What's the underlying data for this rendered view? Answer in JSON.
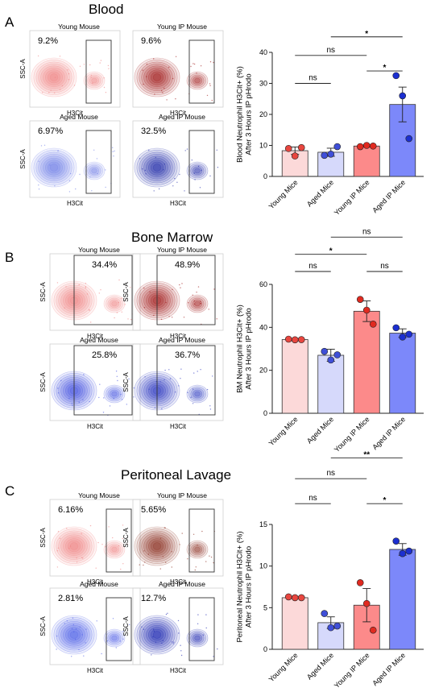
{
  "panels": [
    {
      "letter": "A",
      "title": "Blood",
      "flow": [
        {
          "title": "Young Mouse",
          "pct": "9.2%",
          "x_label": "H3Cit",
          "y_label": "SSC-A",
          "color": "#f08080",
          "style": "right-gate"
        },
        {
          "title": "Young IP Mouse",
          "pct": "9.6%",
          "x_label": "H3Cit",
          "y_label": "",
          "color": "#a01818",
          "style": "right-gate"
        },
        {
          "title": "Aged Mouse",
          "pct": "6.97%",
          "x_label": "H3Cit",
          "y_label": "SSC-A",
          "color": "#6f7fe8",
          "style": "right-gate"
        },
        {
          "title": "Aged IP Mouse",
          "pct": "32.5%",
          "x_label": "H3Cit",
          "y_label": "",
          "color": "#1f2aa8",
          "style": "right-gate"
        }
      ]
    },
    {
      "letter": "B",
      "title": "Bone Marrow",
      "flow": [
        {
          "title": "Young Mouse",
          "pct": "34.4%",
          "x_label": "H3Cit",
          "y_label": "SSC-A",
          "color": "#f08080",
          "style": "wide-gate"
        },
        {
          "title": "Young IP Mouse",
          "pct": "48.9%",
          "x_label": "H3Cit",
          "y_label": "SSC-A",
          "color": "#a01818",
          "style": "wide-gate"
        },
        {
          "title": "Aged Mouse",
          "pct": "25.8%",
          "x_label": "H3Cit",
          "y_label": "SSC-A",
          "color": "#3f4fe0",
          "style": "wide-gate"
        },
        {
          "title": "Aged IP Mouse",
          "pct": "36.7%",
          "x_label": "H3Cit",
          "y_label": "SSC-A",
          "color": "#2a36c0",
          "style": "wide-gate"
        }
      ]
    },
    {
      "letter": "C",
      "title": "Peritoneal Lavage",
      "flow": [
        {
          "title": "Young Mouse",
          "pct": "6.16%",
          "x_label": "H3Cit",
          "y_label": "SSC-A",
          "color": "#f08080",
          "style": "right-gate"
        },
        {
          "title": "Young IP Mouse",
          "pct": "5.65%",
          "x_label": "H3Cit",
          "y_label": "SSC-A",
          "color": "#8a2a1a",
          "style": "right-gate"
        },
        {
          "title": "Aged Mouse",
          "pct": "2.81%",
          "x_label": "H3Cit",
          "y_label": "SSC-A",
          "color": "#4f5fe8",
          "style": "right-gate"
        },
        {
          "title": "Aged IP Mouse",
          "pct": "12.7%",
          "x_label": "H3Cit",
          "y_label": "SSC-A",
          "color": "#1a24b0",
          "style": "right-gate"
        }
      ]
    }
  ],
  "chart_data": [
    {
      "type": "bar",
      "panel": "A",
      "title": "",
      "categories": [
        "Young Mice",
        "Aged Mice",
        "Young IP Mice",
        "Aged IP Mice"
      ],
      "values": [
        8.3,
        7.8,
        9.8,
        23.2
      ],
      "errors": [
        1.2,
        1.3,
        0.3,
        5.6
      ],
      "points": [
        [
          9.0,
          6.6,
          9.3
        ],
        [
          6.8,
          7.2,
          9.6
        ],
        [
          9.6,
          10.0,
          9.8
        ],
        [
          32.5,
          26.0,
          12.2
        ]
      ],
      "ylabel": [
        "Blood Neutrophil H3Cit+ (%)",
        "After 3 Hours IP pHrodo"
      ],
      "ylim": [
        0,
        40
      ],
      "yticks": [
        0,
        10,
        20,
        30,
        40
      ],
      "bar_colors": [
        "#fcd9d9",
        "#d6d9fb",
        "#fc8a8a",
        "#7c88fa"
      ],
      "point_colors": [
        "#e8463f",
        "#3f4fd8",
        "#e02a20",
        "#1c2fd0"
      ],
      "comparisons": [
        {
          "from": 0,
          "to": 1,
          "label": "ns",
          "y": 30
        },
        {
          "from": 0,
          "to": 2,
          "label": "ns",
          "y": 39
        },
        {
          "from": 2,
          "to": 3,
          "label": "*",
          "y": 34
        },
        {
          "from": 1,
          "to": 3,
          "label": "*",
          "y": 45
        }
      ]
    },
    {
      "type": "bar",
      "panel": "B",
      "title": "",
      "categories": [
        "Young Mice",
        "Aged Mice",
        "Young IP Mice",
        "Aged IP Mice"
      ],
      "values": [
        34.3,
        27.0,
        47.5,
        37.3
      ],
      "errors": [
        0.5,
        2.8,
        4.8,
        2.0
      ],
      "points": [
        [
          34.5,
          34.2,
          34.3
        ],
        [
          28.8,
          24.8,
          27.2
        ],
        [
          53.0,
          48.0,
          41.5
        ],
        [
          39.8,
          35.5,
          36.8
        ]
      ],
      "ylabel": [
        "BM Neutrophil H3Cit+ (%)",
        "After 3 Hours IP pHrodo"
      ],
      "ylim": [
        0,
        60
      ],
      "yticks": [
        0,
        20,
        40,
        60
      ],
      "bar_colors": [
        "#fcd9d9",
        "#d6d9fb",
        "#fc8a8a",
        "#7c88fa"
      ],
      "point_colors": [
        "#e8463f",
        "#3f4fd8",
        "#e02a20",
        "#1c2fd0"
      ],
      "comparisons": [
        {
          "from": 0,
          "to": 1,
          "label": "ns",
          "y": 66
        },
        {
          "from": 2,
          "to": 3,
          "label": "ns",
          "y": 66
        },
        {
          "from": 0,
          "to": 2,
          "label": "*",
          "y": 74
        },
        {
          "from": 1,
          "to": 3,
          "label": "ns",
          "y": 82
        }
      ]
    },
    {
      "type": "bar",
      "panel": "C",
      "title": "",
      "categories": [
        "Young Mice",
        "Aged Mice",
        "Young IP Mice",
        "Aged IP Mice"
      ],
      "values": [
        6.2,
        3.2,
        5.3,
        12.0
      ],
      "errors": [
        0.1,
        0.7,
        2.0,
        0.7
      ],
      "points": [
        [
          6.3,
          6.2,
          6.2
        ],
        [
          4.3,
          2.6,
          2.8
        ],
        [
          8.0,
          5.5,
          2.3
        ],
        [
          13.0,
          11.5,
          11.8
        ]
      ],
      "ylabel": [
        "Peritoneal Neutrophil H3Cit+ (%)",
        "After 3 Hours IP pHrodo"
      ],
      "ylim": [
        0,
        15
      ],
      "yticks": [
        0,
        5,
        10,
        15
      ],
      "bar_colors": [
        "#fcd9d9",
        "#d6d9fb",
        "#fc8a8a",
        "#7c88fa"
      ],
      "point_colors": [
        "#e8463f",
        "#3f4fd8",
        "#e02a20",
        "#1c2fd0"
      ],
      "comparisons": [
        {
          "from": 0,
          "to": 1,
          "label": "ns",
          "y": 17.5
        },
        {
          "from": 2,
          "to": 3,
          "label": "*",
          "y": 17.5
        },
        {
          "from": 0,
          "to": 2,
          "label": "ns",
          "y": 20.5
        },
        {
          "from": 1,
          "to": 3,
          "label": "**",
          "y": 23
        }
      ]
    }
  ]
}
